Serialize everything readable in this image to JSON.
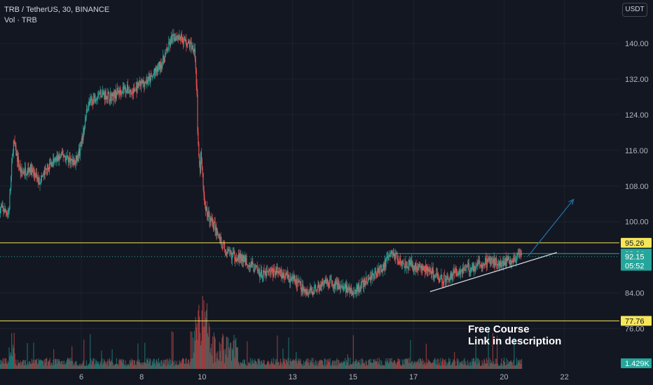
{
  "header": {
    "title": "TRB / TetherUS, 30, BINANCE",
    "volume_label": "Vol · TRB",
    "currency_button": "USDT"
  },
  "annotation": {
    "line1": "Free Course",
    "line2": "Link in description"
  },
  "colors": {
    "background": "#131722",
    "up": "#26a69a",
    "down": "#ef5350",
    "level_line": "#f5e65a",
    "trend_line": "#d1d4dc",
    "arrow": "#1e6fa0",
    "price_tag": "#26a69a"
  },
  "chart_data": {
    "type": "candlestick",
    "symbol": "TRB / TetherUS",
    "interval": "30",
    "exchange": "BINANCE",
    "y_axis": {
      "ticks": [
        140.0,
        132.0,
        124.0,
        116.0,
        108.0,
        100.0,
        84.0,
        76.0
      ],
      "tick_labels": [
        "140.00",
        "132.00",
        "124.00",
        "116.00",
        "108.00",
        "100.00",
        "84.00",
        "76.00"
      ],
      "range": [
        72.0,
        146.0
      ]
    },
    "x_axis": {
      "tick_labels": [
        "6",
        "8",
        "10",
        "13",
        "15",
        "17",
        "20",
        "22"
      ],
      "range_days": [
        3.3,
        22.7
      ]
    },
    "price_path": [
      [
        3.3,
        103
      ],
      [
        3.6,
        102
      ],
      [
        3.75,
        118
      ],
      [
        4.0,
        111
      ],
      [
        4.3,
        112
      ],
      [
        4.6,
        109
      ],
      [
        5.0,
        113
      ],
      [
        5.4,
        115
      ],
      [
        5.8,
        113
      ],
      [
        6.0,
        117
      ],
      [
        6.2,
        126
      ],
      [
        6.6,
        129
      ],
      [
        7.0,
        128
      ],
      [
        7.4,
        130
      ],
      [
        7.7,
        129
      ],
      [
        8.0,
        131
      ],
      [
        8.3,
        132
      ],
      [
        8.7,
        136
      ],
      [
        9.0,
        141
      ],
      [
        9.2,
        142
      ],
      [
        9.5,
        140
      ],
      [
        9.75,
        139
      ],
      [
        9.9,
        120
      ],
      [
        10.1,
        103
      ],
      [
        10.4,
        99
      ],
      [
        10.8,
        93
      ],
      [
        11.2,
        92
      ],
      [
        11.5,
        91
      ],
      [
        12.0,
        88
      ],
      [
        12.5,
        89
      ],
      [
        13.0,
        87
      ],
      [
        13.5,
        84
      ],
      [
        14.0,
        86
      ],
      [
        14.5,
        86
      ],
      [
        15.0,
        84
      ],
      [
        15.5,
        87
      ],
      [
        16.0,
        90
      ],
      [
        16.3,
        93
      ],
      [
        16.6,
        91
      ],
      [
        17.0,
        90
      ],
      [
        17.5,
        89
      ],
      [
        18.0,
        87
      ],
      [
        18.5,
        89
      ],
      [
        19.0,
        90
      ],
      [
        19.5,
        91
      ],
      [
        20.0,
        91
      ],
      [
        20.6,
        92.15
      ]
    ],
    "volume_label": "1.429K",
    "price_levels": [
      {
        "label": "95.26",
        "value": 95.26,
        "style": "horizontal-yellow"
      },
      {
        "label": "77.76",
        "value": 77.76,
        "style": "horizontal-yellow"
      },
      {
        "label": "92.84",
        "value": 92.84,
        "style": "horizontal-green"
      }
    ],
    "current_price": {
      "label": "92.15",
      "value": 92.15,
      "countdown": "05:52"
    },
    "trend_line": {
      "from": [
        17.55,
        84.3
      ],
      "to": [
        21.75,
        93.1
      ]
    },
    "arrow": {
      "from": [
        20.8,
        92.3
      ],
      "to": [
        22.3,
        105.0
      ]
    }
  }
}
